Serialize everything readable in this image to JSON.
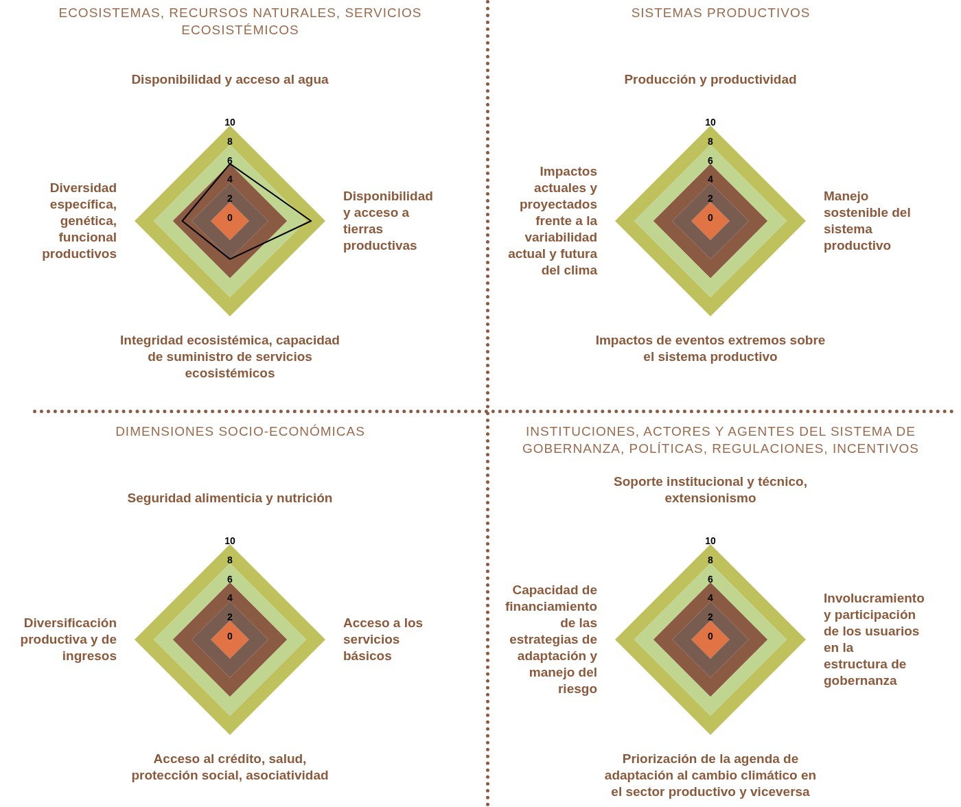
{
  "chart_data": [
    {
      "type": "radar",
      "title": "ECOSISTEMAS, RECURSOS NATURALES, SERVICIOS ECOSISTÉMICOS",
      "categories": [
        "Disponibilidad y acceso al agua",
        "Disponibilidad y acceso a tierras productivas",
        "Integridad ecosistémica, capacidad de suministro de servicios ecosistémicos",
        "Diversidad específica, genética, funcional productivos"
      ],
      "ylim": [
        0,
        10
      ],
      "yticks": [
        0,
        2,
        4,
        6,
        8,
        10
      ],
      "series": [
        {
          "color": "#000000",
          "values": [
            6,
            8.5,
            4,
            5
          ]
        }
      ]
    },
    {
      "type": "radar",
      "title": "SISTEMAS PRODUCTIVOS",
      "categories": [
        "Producción y productividad",
        "Manejo sostenible del sistema productivo",
        "Impactos de eventos extremos sobre el sistema productivo",
        "Impactos actuales y proyectados frente a la variabilidad actual y futura del clima"
      ],
      "ylim": [
        0,
        10
      ],
      "yticks": [
        0,
        2,
        4,
        6,
        8,
        10
      ]
    },
    {
      "type": "radar",
      "title": "DIMENSIONES SOCIO-ECONÓMICAS",
      "categories": [
        "Seguridad alimenticia y nutrición",
        "Acceso a los servicios básicos",
        "Acceso al crédito, salud, protección social, asociatividad",
        "Diversificación productiva y de ingresos"
      ],
      "ylim": [
        0,
        10
      ],
      "yticks": [
        0,
        2,
        4,
        6,
        8,
        10
      ]
    },
    {
      "type": "radar",
      "title": "INSTITUCIONES, ACTORES Y AGENTES DEL SISTEMA DE GOBERNANZA, POLÍTICAS, REGULACIONES, INCENTIVOS",
      "categories": [
        "Soporte institucional y técnico, extensionismo",
        "Involucramiento y participación de los usuarios en la estructura de gobernanza",
        "Priorización de la agenda de adaptación al cambio climático en el sector productivo y viceversa",
        "Capacidad de financiamiento de las estrategias de adaptación y manejo del riesgo"
      ],
      "ylim": [
        0,
        10
      ],
      "yticks": [
        0,
        2,
        4,
        6,
        8,
        10
      ]
    }
  ]
}
